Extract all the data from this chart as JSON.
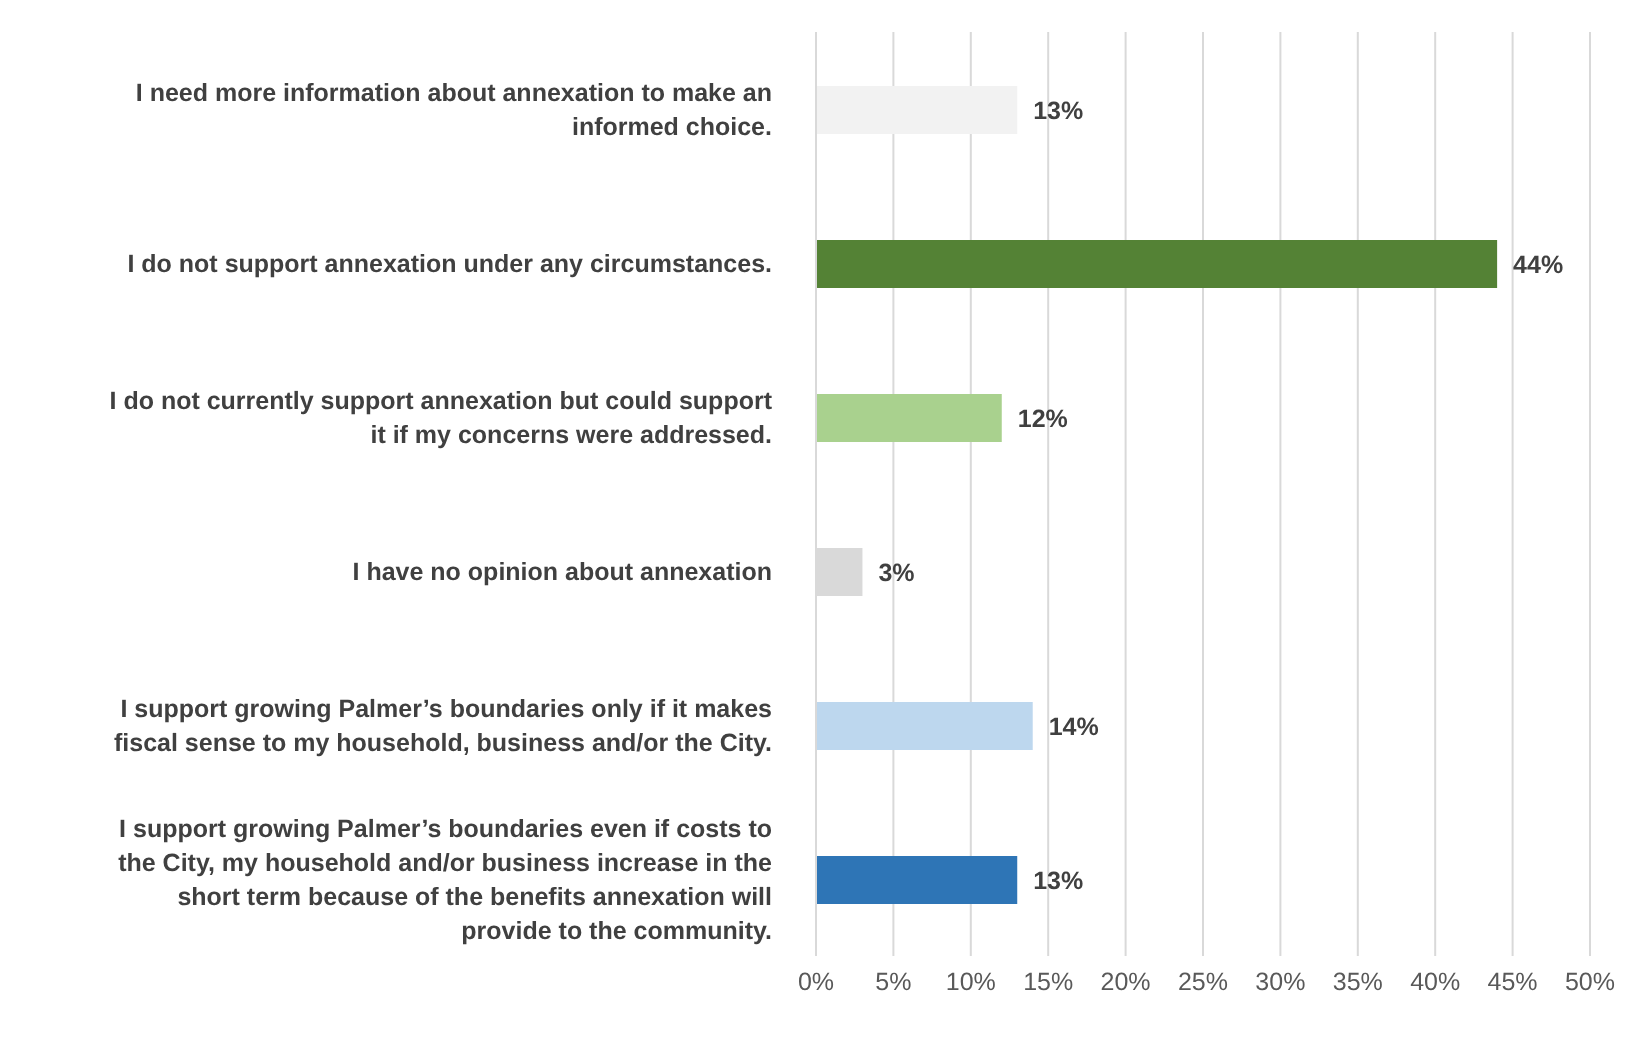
{
  "chart_data": {
    "type": "bar",
    "orientation": "horizontal",
    "categories": [
      "I need more information about annexation to make an informed choice.",
      "I do not support annexation under any circumstances.",
      "I do not currently support annexation but could support it if my concerns were addressed.",
      "I have no opinion about annexation",
      "I support growing Palmer’s boundaries only if it makes fiscal sense to my household, business and/or the City.",
      "I support growing Palmer’s boundaries even if costs to the City, my household and/or business increase in the short term because of the benefits annexation will provide to the community."
    ],
    "values": [
      13,
      44,
      12,
      3,
      14,
      13
    ],
    "colors": [
      "#f2f2f2",
      "#548235",
      "#a9d18e",
      "#d9d9d9",
      "#bdd7ee",
      "#2e75b6"
    ],
    "value_labels": [
      "13%",
      "44%",
      "12%",
      "3%",
      "14%",
      "13%"
    ],
    "xlim": [
      0,
      50
    ],
    "xticks": [
      {
        "value": 0,
        "label": "0%"
      },
      {
        "value": 5,
        "label": "5%"
      },
      {
        "value": 10,
        "label": "10%"
      },
      {
        "value": 15,
        "label": "15%"
      },
      {
        "value": 20,
        "label": "20%"
      },
      {
        "value": 25,
        "label": "25%"
      },
      {
        "value": 30,
        "label": "30%"
      },
      {
        "value": 35,
        "label": "35%"
      },
      {
        "value": 40,
        "label": "40%"
      },
      {
        "value": 45,
        "label": "45%"
      },
      {
        "value": 50,
        "label": "50%"
      }
    ],
    "grid": "x",
    "legend": false
  }
}
